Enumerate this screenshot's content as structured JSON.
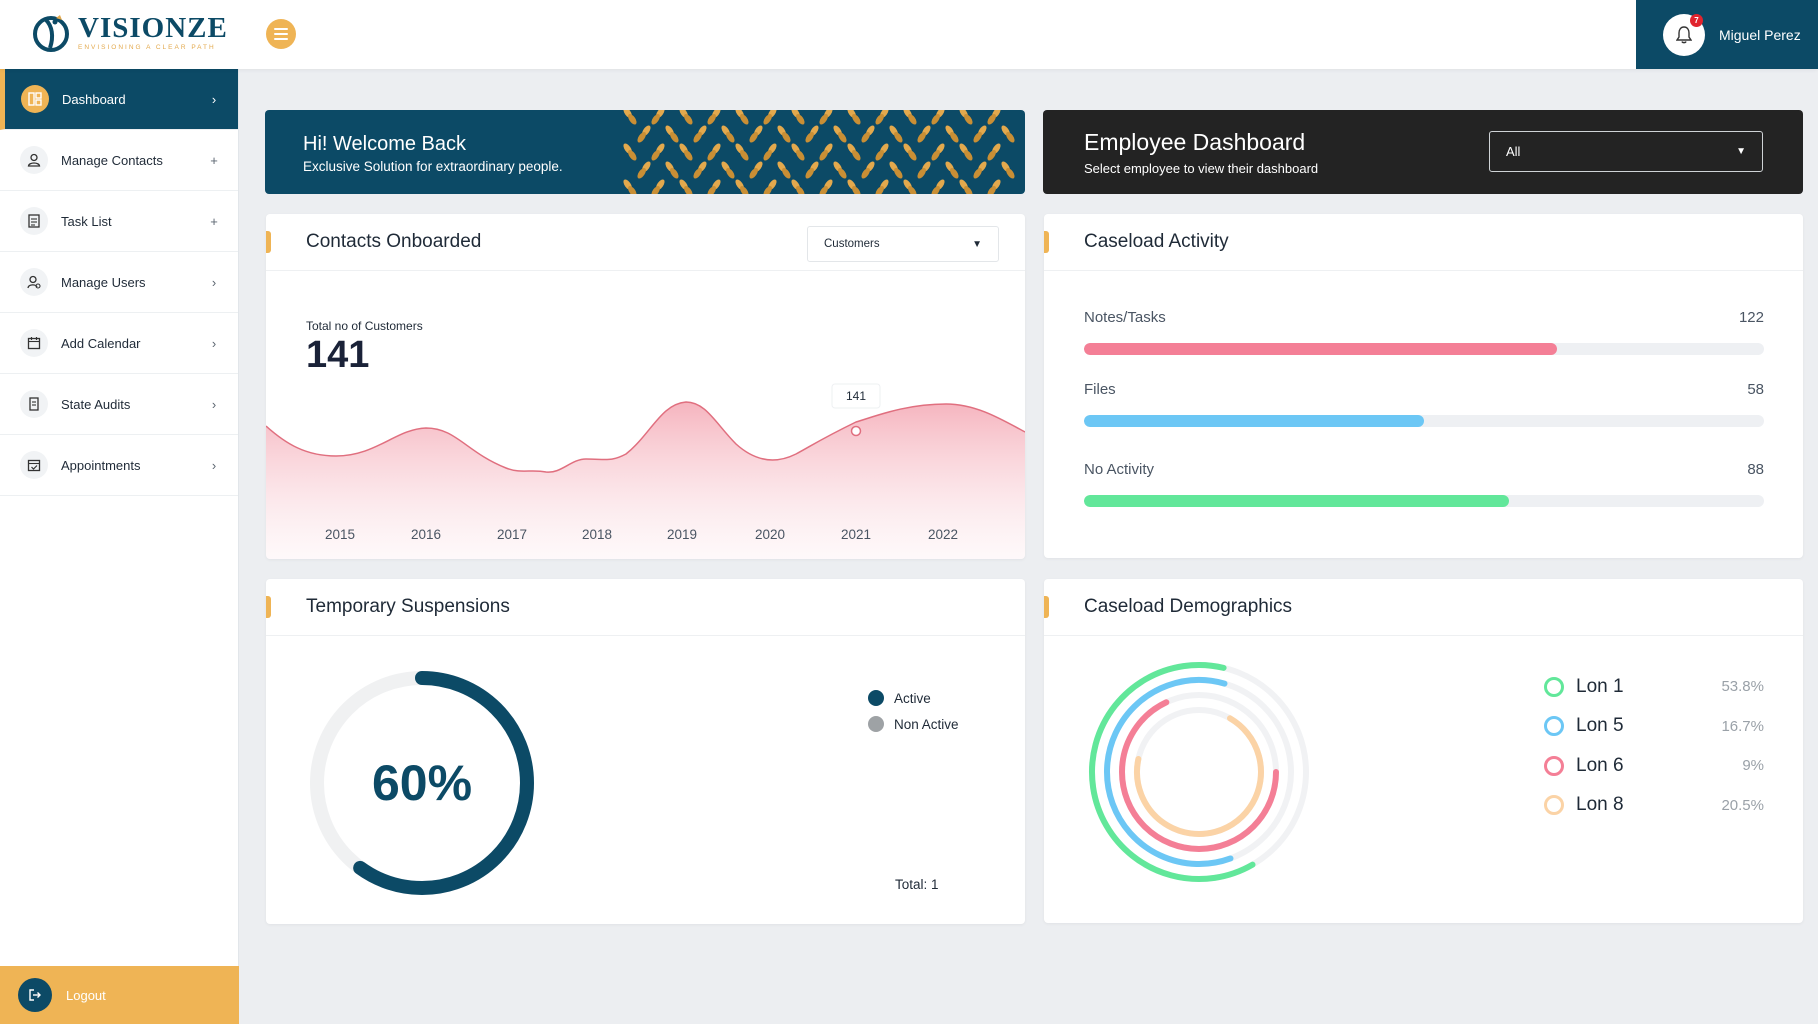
{
  "brand": {
    "name": "VISIONZE",
    "tagline": "ENVISIONING A CLEAR PATH"
  },
  "header": {
    "user_name": "Miguel Perez",
    "notification_count": "7"
  },
  "sidebar": {
    "items": [
      {
        "label": "Dashboard",
        "caret": "›",
        "icon": "dashboard-icon"
      },
      {
        "label": "Manage Contacts",
        "caret": "+",
        "icon": "contacts-icon"
      },
      {
        "label": "Task List",
        "caret": "+",
        "icon": "task-list-icon"
      },
      {
        "label": "Manage Users",
        "caret": "›",
        "icon": "users-icon"
      },
      {
        "label": "Add Calendar",
        "caret": "›",
        "icon": "calendar-icon"
      },
      {
        "label": "State Audits",
        "caret": "›",
        "icon": "audit-icon"
      },
      {
        "label": "Appointments",
        "caret": "›",
        "icon": "appointments-icon"
      }
    ],
    "logout_label": "Logout"
  },
  "welcome": {
    "title": "Hi! Welcome Back",
    "subtitle": "Exclusive Solution for extraordinary people."
  },
  "employee": {
    "title": "Employee Dashboard",
    "subtitle": "Select employee to view their dashboard",
    "selected": "All"
  },
  "contacts": {
    "title": "Contacts Onboarded",
    "filter": "Customers",
    "total_label": "Total no of Customers",
    "total_value": "141",
    "tooltip": "141"
  },
  "chart_data": {
    "type": "area",
    "categories": [
      "2015",
      "2016",
      "2017",
      "2018",
      "2019",
      "2020",
      "2021",
      "2022"
    ],
    "highlight": {
      "category": "2021",
      "value": 141
    },
    "color": "#e06f7f"
  },
  "activity": {
    "title": "Caseload Activity",
    "rows": [
      {
        "label": "Notes/Tasks",
        "value": "122",
        "fraction": 0.695,
        "color": "#f47f96"
      },
      {
        "label": "Files",
        "value": "58",
        "fraction": 0.5,
        "color": "#6cc7f5"
      },
      {
        "label": "No Activity",
        "value": "88",
        "fraction": 0.625,
        "color": "#62e79a"
      }
    ]
  },
  "suspensions": {
    "title": "Temporary Suspensions",
    "percent_label": "60%",
    "percent": 60,
    "legend": [
      {
        "label": "Active",
        "color": "#0c4a66"
      },
      {
        "label": "Non Active",
        "color": "#9ea2a5"
      }
    ],
    "total": "Total: 1"
  },
  "demographics": {
    "title": "Caseload Demographics",
    "items": [
      {
        "name": "Lon 1",
        "pct": "53.8%",
        "value": 53.8,
        "color": "#62e79a"
      },
      {
        "name": "Lon 5",
        "pct": "16.7%",
        "value": 16.7,
        "color": "#6cc7f5"
      },
      {
        "name": "Lon 6",
        "pct": "9%",
        "value": 9,
        "color": "#f47f96"
      },
      {
        "name": "Lon 8",
        "pct": "20.5%",
        "value": 20.5,
        "color": "#fbd3a6"
      }
    ]
  },
  "colors": {
    "primary": "#0c4a66",
    "accent": "#efb455",
    "dark": "#232323"
  }
}
